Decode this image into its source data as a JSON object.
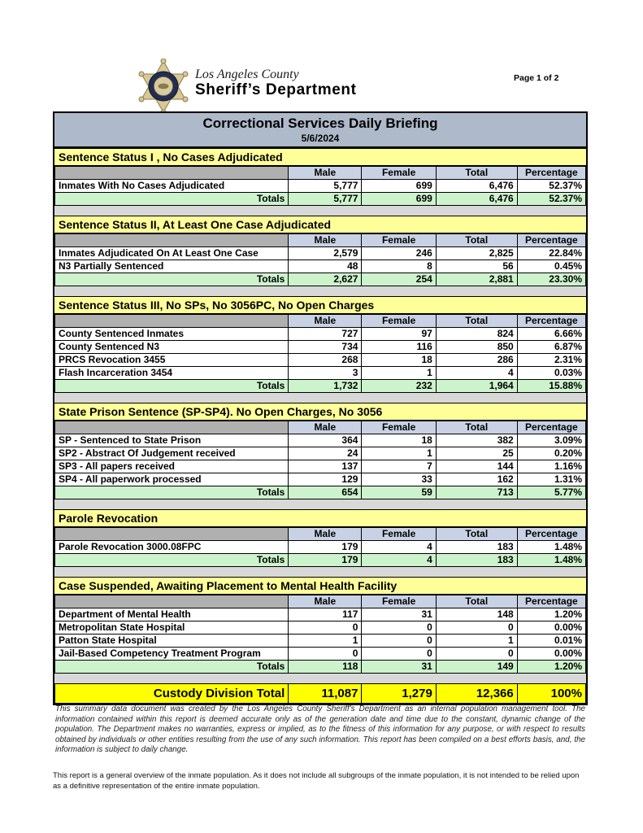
{
  "header": {
    "agency_line1": "Los Angeles County",
    "agency_line2": "Sheriff’s Department",
    "trademark": "™",
    "page_label": "Page 1 of 2"
  },
  "banner": {
    "title": "Correctional Services Daily Briefing",
    "date": "5/6/2024"
  },
  "columns": [
    "Male",
    "Female",
    "Total",
    "Percentage"
  ],
  "totals_label": "Totals",
  "sections": [
    {
      "title": "Sentence Status I , No Cases Adjudicated",
      "rows": [
        {
          "label": "Inmates With No Cases Adjudicated",
          "male": "5,777",
          "female": "699",
          "total": "6,476",
          "percentage": "52.37%"
        }
      ],
      "totals": {
        "male": "5,777",
        "female": "699",
        "total": "6,476",
        "percentage": "52.37%"
      }
    },
    {
      "title": "Sentence Status II, At Least One Case Adjudicated",
      "rows": [
        {
          "label": "Inmates Adjudicated On At Least One Case",
          "male": "2,579",
          "female": "246",
          "total": "2,825",
          "percentage": "22.84%"
        },
        {
          "label": "N3 Partially Sentenced",
          "male": "48",
          "female": "8",
          "total": "56",
          "percentage": "0.45%"
        }
      ],
      "totals": {
        "male": "2,627",
        "female": "254",
        "total": "2,881",
        "percentage": "23.30%"
      }
    },
    {
      "title": "Sentence Status III, No SPs, No 3056PC, No Open Charges",
      "rows": [
        {
          "label": "County Sentenced Inmates",
          "male": "727",
          "female": "97",
          "total": "824",
          "percentage": "6.66%"
        },
        {
          "label": "County Sentenced N3",
          "male": "734",
          "female": "116",
          "total": "850",
          "percentage": "6.87%"
        },
        {
          "label": "PRCS Revocation 3455",
          "male": "268",
          "female": "18",
          "total": "286",
          "percentage": "2.31%"
        },
        {
          "label": "Flash Incarceration 3454",
          "male": "3",
          "female": "1",
          "total": "4",
          "percentage": "0.03%"
        }
      ],
      "totals": {
        "male": "1,732",
        "female": "232",
        "total": "1,964",
        "percentage": "15.88%"
      }
    },
    {
      "title": "State Prison Sentence (SP-SP4). No Open Charges, No 3056",
      "rows": [
        {
          "label": "SP - Sentenced to State Prison",
          "male": "364",
          "female": "18",
          "total": "382",
          "percentage": "3.09%"
        },
        {
          "label": "SP2 - Abstract Of Judgement received",
          "male": "24",
          "female": "1",
          "total": "25",
          "percentage": "0.20%"
        },
        {
          "label": "SP3 - All papers received",
          "male": "137",
          "female": "7",
          "total": "144",
          "percentage": "1.16%"
        },
        {
          "label": "SP4 - All paperwork processed",
          "male": "129",
          "female": "33",
          "total": "162",
          "percentage": "1.31%"
        }
      ],
      "totals": {
        "male": "654",
        "female": "59",
        "total": "713",
        "percentage": "5.77%"
      }
    },
    {
      "title": "Parole Revocation",
      "rows": [
        {
          "label": "Parole Revocation 3000.08FPC",
          "male": "179",
          "female": "4",
          "total": "183",
          "percentage": "1.48%"
        }
      ],
      "totals": {
        "male": "179",
        "female": "4",
        "total": "183",
        "percentage": "1.48%"
      }
    },
    {
      "title": "Case Suspended, Awaiting Placement to Mental Health Facility",
      "rows": [
        {
          "label": "Department of Mental Health",
          "male": "117",
          "female": "31",
          "total": "148",
          "percentage": "1.20%"
        },
        {
          "label": "Metropolitan State Hospital",
          "male": "0",
          "female": "0",
          "total": "0",
          "percentage": "0.00%"
        },
        {
          "label": "Patton State Hospital",
          "male": "1",
          "female": "0",
          "total": "1",
          "percentage": "0.01%"
        },
        {
          "label": "Jail-Based Competency Treatment Program",
          "male": "0",
          "female": "0",
          "total": "0",
          "percentage": "0.00%"
        }
      ],
      "totals": {
        "male": "118",
        "female": "31",
        "total": "149",
        "percentage": "1.20%"
      }
    }
  ],
  "grand_total": {
    "label": "Custody Division Total",
    "male": "11,087",
    "female": "1,279",
    "total": "12,366",
    "percentage": "100%"
  },
  "disclaimer": "This summary data document was created by the Los Angeles County Sheriff's Department as an internal population management tool.  The information contained within this report is deemed accurate only as of the generation date and time due to the constant, dynamic change of the population.  The Department makes no warranties, express or implied, as to the fitness of this information for any purpose, or with respect to results obtained by individuals or other entities resulting from the use of any such information.  This report has been compiled on a best efforts basis, and, the information is subject to daily change.",
  "footnote": "This report is a general overview of the inmate population.  As it does not include all subgroups of the inmate population, it is not intended to be relied upon as a definitive representation of the entire inmate population.",
  "colors": {
    "banner_bg": "#aeb9c9",
    "section_header_bg": "#ffff99",
    "column_header_bg": "#c8d2e4",
    "column_header_stub_bg": "#b0b0b0",
    "totals_bg": "#cdf3cd",
    "grand_total_bg": "#ffff00",
    "gap_bg": "#d8d8d8",
    "badge_gold": "#d9c894",
    "badge_navy": "#232d52"
  }
}
